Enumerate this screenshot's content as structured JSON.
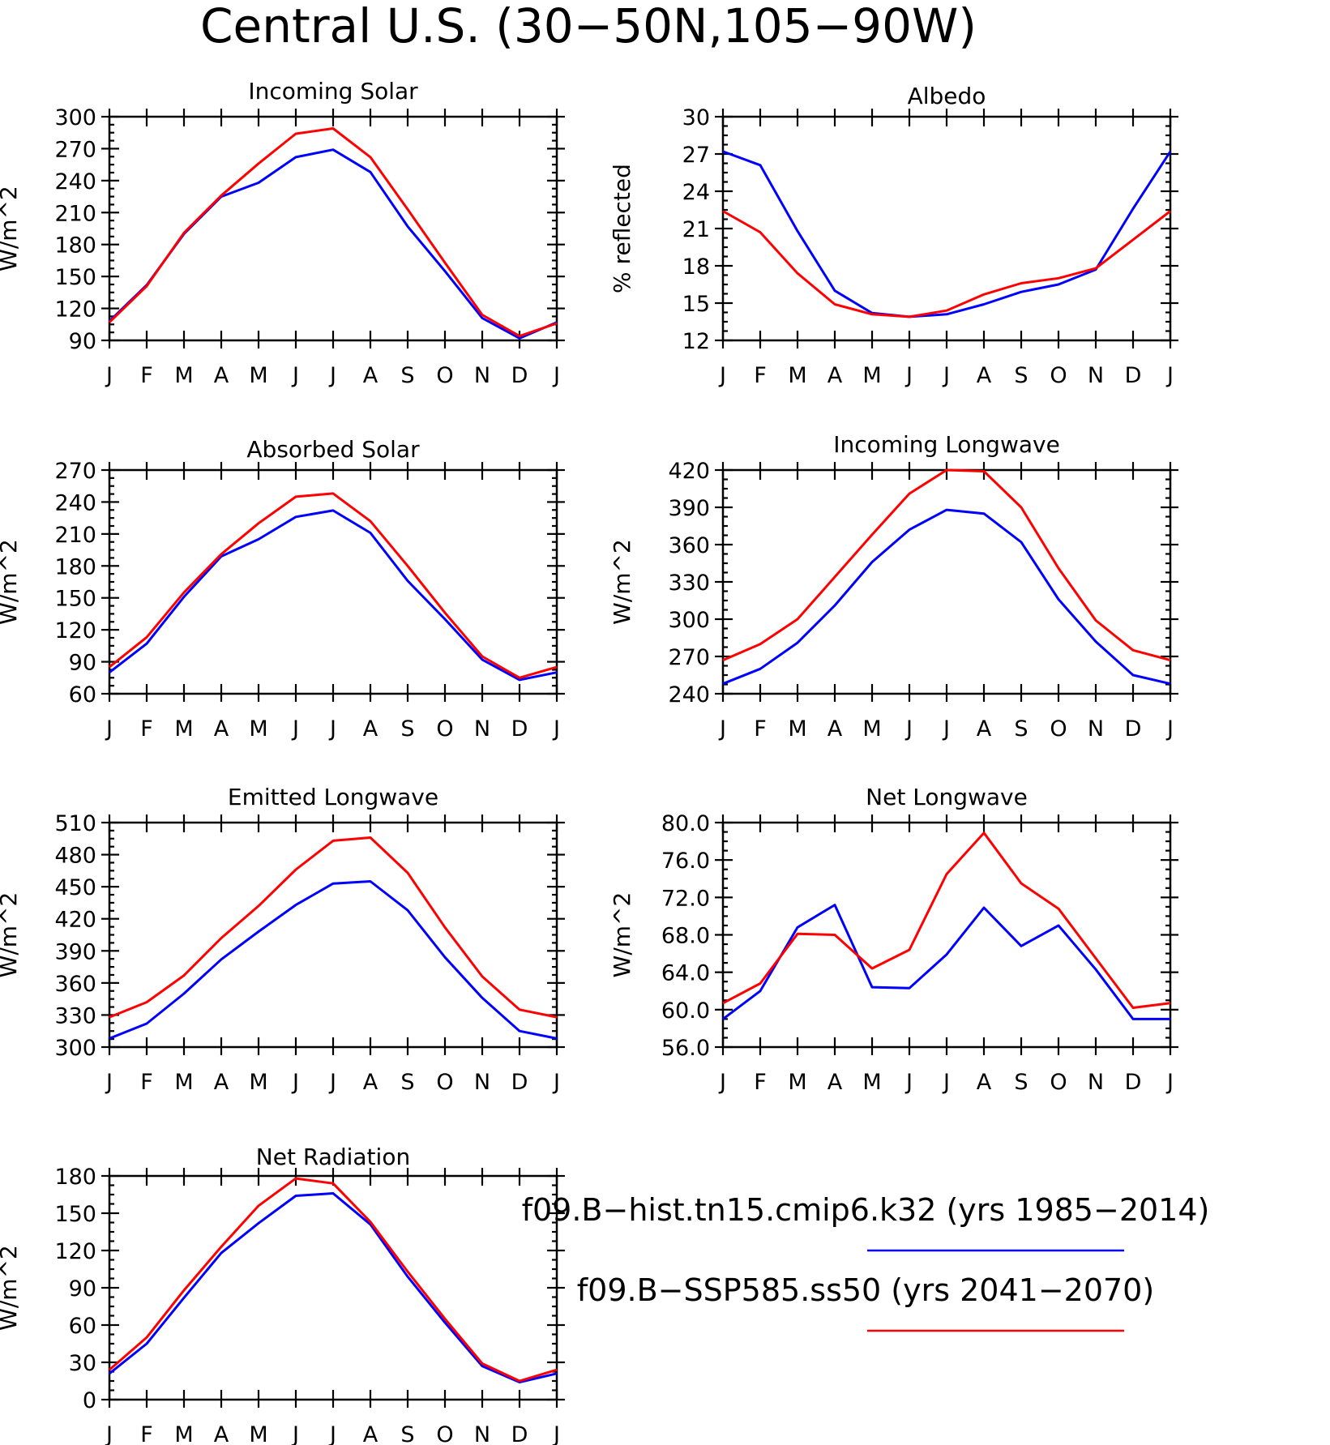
{
  "title": "Central U.S. (30−50N,105−90W)",
  "legend": [
    {
      "label": "f09.B−hist.tn15.cmip6.k32 (yrs 1985−2014)",
      "color": "#0000ff"
    },
    {
      "label": "f09.B−SSP585.ss50 (yrs 2041−2070)",
      "color": "#ff0000"
    }
  ],
  "chart_data": [
    {
      "type": "line",
      "title": "Incoming Solar",
      "ylabel": "W/m^2",
      "xlabel": "",
      "categories": [
        "J",
        "F",
        "M",
        "A",
        "M",
        "J",
        "J",
        "A",
        "S",
        "O",
        "N",
        "D",
        "J"
      ],
      "ylim": [
        90,
        300
      ],
      "yticks": [
        "90",
        "120",
        "150",
        "180",
        "210",
        "240",
        "270",
        "300"
      ],
      "series": [
        {
          "color": "#0000ff",
          "values": [
            108,
            142,
            190,
            225,
            238,
            262,
            269,
            248,
            197,
            155,
            111,
            92,
            107
          ]
        },
        {
          "color": "#ff0000",
          "values": [
            107,
            141,
            191,
            226,
            256,
            284,
            289,
            262,
            213,
            163,
            114,
            94,
            106
          ]
        }
      ]
    },
    {
      "type": "line",
      "title": "Albedo",
      "ylabel": "% reflected",
      "xlabel": "",
      "categories": [
        "J",
        "F",
        "M",
        "A",
        "M",
        "J",
        "J",
        "A",
        "S",
        "O",
        "N",
        "D",
        "J"
      ],
      "ylim": [
        12,
        30
      ],
      "yticks": [
        "12",
        "15",
        "18",
        "21",
        "24",
        "27",
        "30"
      ],
      "series": [
        {
          "color": "#0000ff",
          "values": [
            27.2,
            26.1,
            20.8,
            16.0,
            14.2,
            13.9,
            14.1,
            14.9,
            15.9,
            16.5,
            17.7,
            22.6,
            27.2
          ]
        },
        {
          "color": "#ff0000",
          "values": [
            22.4,
            20.7,
            17.4,
            14.9,
            14.1,
            13.9,
            14.4,
            15.7,
            16.6,
            17.0,
            17.8,
            20.1,
            22.4
          ]
        }
      ]
    },
    {
      "type": "line",
      "title": "Absorbed Solar",
      "ylabel": "W/m^2",
      "xlabel": "",
      "categories": [
        "J",
        "F",
        "M",
        "A",
        "M",
        "J",
        "J",
        "A",
        "S",
        "O",
        "N",
        "D",
        "J"
      ],
      "ylim": [
        60,
        270
      ],
      "yticks": [
        "60",
        "90",
        "120",
        "150",
        "180",
        "210",
        "240",
        "270"
      ],
      "series": [
        {
          "color": "#0000ff",
          "values": [
            80,
            107,
            151,
            189,
            205,
            226,
            232,
            211,
            166,
            130,
            92,
            73,
            80
          ]
        },
        {
          "color": "#ff0000",
          "values": [
            85,
            113,
            155,
            191,
            220,
            245,
            248,
            222,
            180,
            136,
            95,
            75,
            85
          ]
        }
      ]
    },
    {
      "type": "line",
      "title": "Incoming Longwave",
      "ylabel": "W/m^2",
      "xlabel": "",
      "categories": [
        "J",
        "F",
        "M",
        "A",
        "M",
        "J",
        "J",
        "A",
        "S",
        "O",
        "N",
        "D",
        "J"
      ],
      "ylim": [
        240,
        420
      ],
      "yticks": [
        "240",
        "270",
        "300",
        "330",
        "360",
        "390",
        "420"
      ],
      "series": [
        {
          "color": "#0000ff",
          "values": [
            248,
            260,
            281,
            311,
            346,
            372,
            388,
            385,
            362,
            316,
            282,
            255,
            248
          ]
        },
        {
          "color": "#ff0000",
          "values": [
            267,
            280,
            300,
            334,
            368,
            401,
            420,
            419,
            390,
            341,
            299,
            275,
            267
          ]
        }
      ]
    },
    {
      "type": "line",
      "title": "Emitted Longwave",
      "ylabel": "W/m^2",
      "xlabel": "",
      "categories": [
        "J",
        "F",
        "M",
        "A",
        "M",
        "J",
        "J",
        "A",
        "S",
        "O",
        "N",
        "D",
        "J"
      ],
      "ylim": [
        300,
        510
      ],
      "yticks": [
        "300",
        "330",
        "360",
        "390",
        "420",
        "450",
        "480",
        "510"
      ],
      "series": [
        {
          "color": "#0000ff",
          "values": [
            308,
            322,
            350,
            382,
            408,
            433,
            453,
            455,
            428,
            384,
            346,
            315,
            308
          ]
        },
        {
          "color": "#ff0000",
          "values": [
            328,
            342,
            367,
            402,
            432,
            466,
            493,
            496,
            463,
            412,
            366,
            335,
            328
          ]
        }
      ]
    },
    {
      "type": "line",
      "title": "Net Longwave",
      "ylabel": "W/m^2",
      "xlabel": "",
      "categories": [
        "J",
        "F",
        "M",
        "A",
        "M",
        "J",
        "J",
        "A",
        "S",
        "O",
        "N",
        "D",
        "J"
      ],
      "ylim": [
        56,
        80
      ],
      "yticks": [
        "56.0",
        "60.0",
        "64.0",
        "68.0",
        "72.0",
        "76.0",
        "80.0"
      ],
      "series": [
        {
          "color": "#0000ff",
          "values": [
            59.0,
            62.0,
            68.8,
            71.2,
            62.4,
            62.3,
            65.9,
            70.9,
            66.8,
            69.0,
            64.3,
            59.0,
            59.0
          ]
        },
        {
          "color": "#ff0000",
          "values": [
            60.7,
            62.8,
            68.1,
            68.0,
            64.4,
            66.4,
            74.5,
            78.9,
            73.5,
            70.8,
            65.5,
            60.2,
            60.7
          ]
        }
      ]
    },
    {
      "type": "line",
      "title": "Net Radiation",
      "ylabel": "W/m^2",
      "xlabel": "",
      "categories": [
        "J",
        "F",
        "M",
        "A",
        "M",
        "J",
        "J",
        "A",
        "S",
        "O",
        "N",
        "D",
        "J"
      ],
      "ylim": [
        0,
        180
      ],
      "yticks": [
        "0",
        "30",
        "60",
        "90",
        "120",
        "150",
        "180"
      ],
      "series": [
        {
          "color": "#0000ff",
          "values": [
            21,
            45,
            82,
            118,
            142,
            164,
            166,
            141,
            99,
            62,
            27,
            14,
            21
          ]
        },
        {
          "color": "#ff0000",
          "values": [
            24,
            50,
            88,
            123,
            156,
            178,
            174,
            143,
            103,
            65,
            29,
            15,
            24
          ]
        }
      ]
    }
  ]
}
